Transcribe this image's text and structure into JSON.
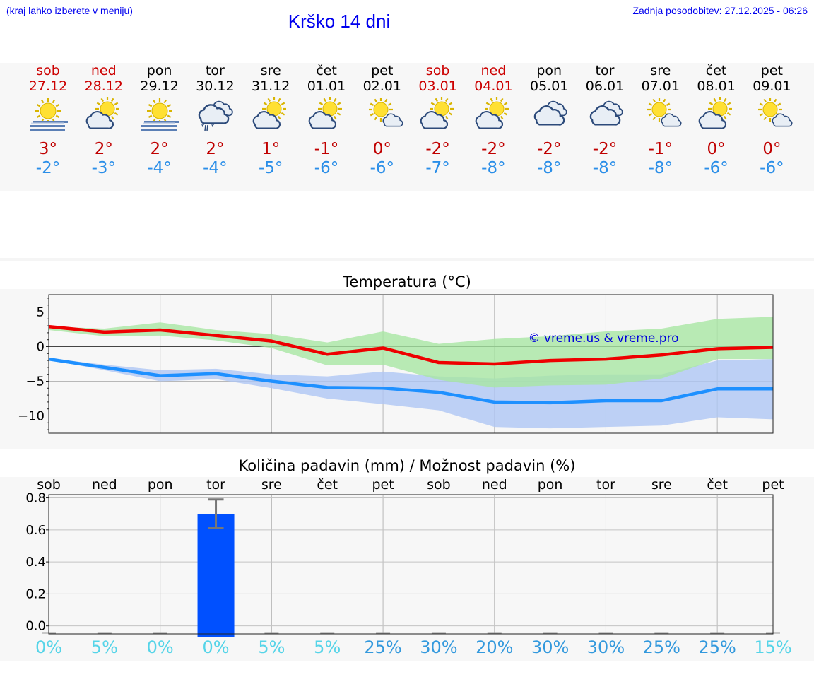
{
  "header": {
    "hint": "(kraj lahko izberete v meniju)",
    "title": "Krško 14 dni",
    "updated": "Zadnja posodobitev: 27.12.2025 - 06:26"
  },
  "days": [
    {
      "name": "sob",
      "date": "27.12",
      "weekend": true,
      "icon": "sun-fog-icon",
      "tmax": "3°",
      "tmin": "-2°"
    },
    {
      "name": "ned",
      "date": "28.12",
      "weekend": true,
      "icon": "sun-cloud-icon",
      "tmax": "2°",
      "tmin": "-3°"
    },
    {
      "name": "pon",
      "date": "29.12",
      "weekend": false,
      "icon": "sun-fog-icon",
      "tmax": "2°",
      "tmin": "-4°"
    },
    {
      "name": "tor",
      "date": "30.12",
      "weekend": false,
      "icon": "cloud-rain-snow-icon",
      "tmax": "2°",
      "tmin": "-4°"
    },
    {
      "name": "sre",
      "date": "31.12",
      "weekend": false,
      "icon": "sun-cloud-icon",
      "tmax": "1°",
      "tmin": "-5°"
    },
    {
      "name": "čet",
      "date": "01.01",
      "weekend": false,
      "icon": "sun-cloud-icon",
      "tmax": "-1°",
      "tmin": "-6°"
    },
    {
      "name": "pet",
      "date": "02.01",
      "weekend": false,
      "icon": "sun-small-cloud-icon",
      "tmax": "0°",
      "tmin": "-6°"
    },
    {
      "name": "sob",
      "date": "03.01",
      "weekend": true,
      "icon": "sun-cloud-icon",
      "tmax": "-2°",
      "tmin": "-7°"
    },
    {
      "name": "ned",
      "date": "04.01",
      "weekend": true,
      "icon": "sun-cloud-icon",
      "tmax": "-2°",
      "tmin": "-8°"
    },
    {
      "name": "pon",
      "date": "05.01",
      "weekend": false,
      "icon": "cloudy-icon",
      "tmax": "-2°",
      "tmin": "-8°"
    },
    {
      "name": "tor",
      "date": "06.01",
      "weekend": false,
      "icon": "cloudy-icon",
      "tmax": "-2°",
      "tmin": "-8°"
    },
    {
      "name": "sre",
      "date": "07.01",
      "weekend": false,
      "icon": "sun-small-cloud-icon",
      "tmax": "-1°",
      "tmin": "-8°"
    },
    {
      "name": "čet",
      "date": "08.01",
      "weekend": false,
      "icon": "sun-cloud-icon",
      "tmax": "0°",
      "tmin": "-6°"
    },
    {
      "name": "pet",
      "date": "09.01",
      "weekend": false,
      "icon": "sun-small-cloud-icon",
      "tmax": "0°",
      "tmin": "-6°"
    }
  ],
  "colors": {
    "max_line": "#ee0000",
    "max_band": "#a8e6a3",
    "min_line": "#1e90ff",
    "min_band": "#aec6f4",
    "bar": "#0050ff",
    "weekend": "#cc0000",
    "pct_low": "#55d4e8",
    "pct_high": "#3399dd"
  },
  "chart_data": [
    {
      "type": "line",
      "title": "Temperatura (°C)",
      "x": [
        0,
        1,
        2,
        3,
        4,
        5,
        6,
        7,
        8,
        9,
        10,
        11,
        12,
        13
      ],
      "series": [
        {
          "name": "max",
          "values": [
            2.9,
            2.1,
            2.4,
            1.6,
            0.8,
            -1.1,
            -0.2,
            -2.3,
            -2.5,
            -2.0,
            -1.8,
            -1.2,
            -0.3,
            -0.1
          ],
          "band_low": [
            2.4,
            1.5,
            1.6,
            0.9,
            -0.2,
            -2.7,
            -2.6,
            -4.8,
            -5.9,
            -5.6,
            -5.5,
            -4.6,
            -1.8,
            -1.8
          ],
          "band_high": [
            2.9,
            2.6,
            3.5,
            2.4,
            1.8,
            0.6,
            2.2,
            0.4,
            1.1,
            1.5,
            2.2,
            2.6,
            4.0,
            4.3
          ]
        },
        {
          "name": "min",
          "values": [
            -1.8,
            -3.0,
            -4.2,
            -3.9,
            -5.0,
            -5.9,
            -6.0,
            -6.6,
            -8.0,
            -8.1,
            -7.8,
            -7.8,
            -6.1,
            -6.1
          ],
          "band_low": [
            -1.9,
            -3.4,
            -5.0,
            -4.7,
            -6.0,
            -7.5,
            -8.3,
            -9.2,
            -11.6,
            -11.8,
            -11.6,
            -11.4,
            -10.2,
            -10.5
          ],
          "band_high": [
            -1.7,
            -2.6,
            -3.4,
            -3.2,
            -4.0,
            -4.3,
            -3.6,
            -4.3,
            -4.6,
            -4.2,
            -4.0,
            -4.0,
            -2.0,
            -1.8
          ]
        }
      ],
      "ylim": [
        -12.5,
        7.5
      ],
      "yticks": [
        5,
        0,
        -5,
        -10
      ],
      "ytick_labels": [
        "5",
        "0",
        "−5",
        "−10"
      ],
      "watermark": "© vreme.us & vreme.pro"
    },
    {
      "type": "bar",
      "title": "Količina padavin (mm) / Možnost padavin (%)",
      "categories": [
        "sob",
        "ned",
        "pon",
        "tor",
        "sre",
        "čet",
        "pet",
        "sob",
        "ned",
        "pon",
        "tor",
        "sre",
        "čet",
        "pet"
      ],
      "values": [
        0,
        0,
        0,
        0.7,
        0,
        0,
        0,
        0,
        0,
        0,
        0,
        0,
        0,
        0
      ],
      "error_low": [
        0,
        0,
        0,
        0.61,
        0,
        0,
        0,
        0,
        0,
        0,
        0,
        0,
        0,
        0
      ],
      "error_high": [
        0,
        0,
        0,
        0.79,
        0,
        0,
        0,
        0,
        0,
        0,
        0,
        0,
        0,
        0
      ],
      "ylim": [
        -0.05,
        0.82
      ],
      "yticks": [
        0.8,
        0.6,
        0.4,
        0.2,
        0.0
      ],
      "ytick_labels": [
        "0.8",
        "0.6",
        "0.4",
        "0.2",
        "0.0"
      ],
      "probabilities": [
        "0%",
        "5%",
        "0%",
        "0%",
        "5%",
        "5%",
        "25%",
        "30%",
        "20%",
        "30%",
        "30%",
        "25%",
        "25%",
        "15%"
      ]
    }
  ]
}
